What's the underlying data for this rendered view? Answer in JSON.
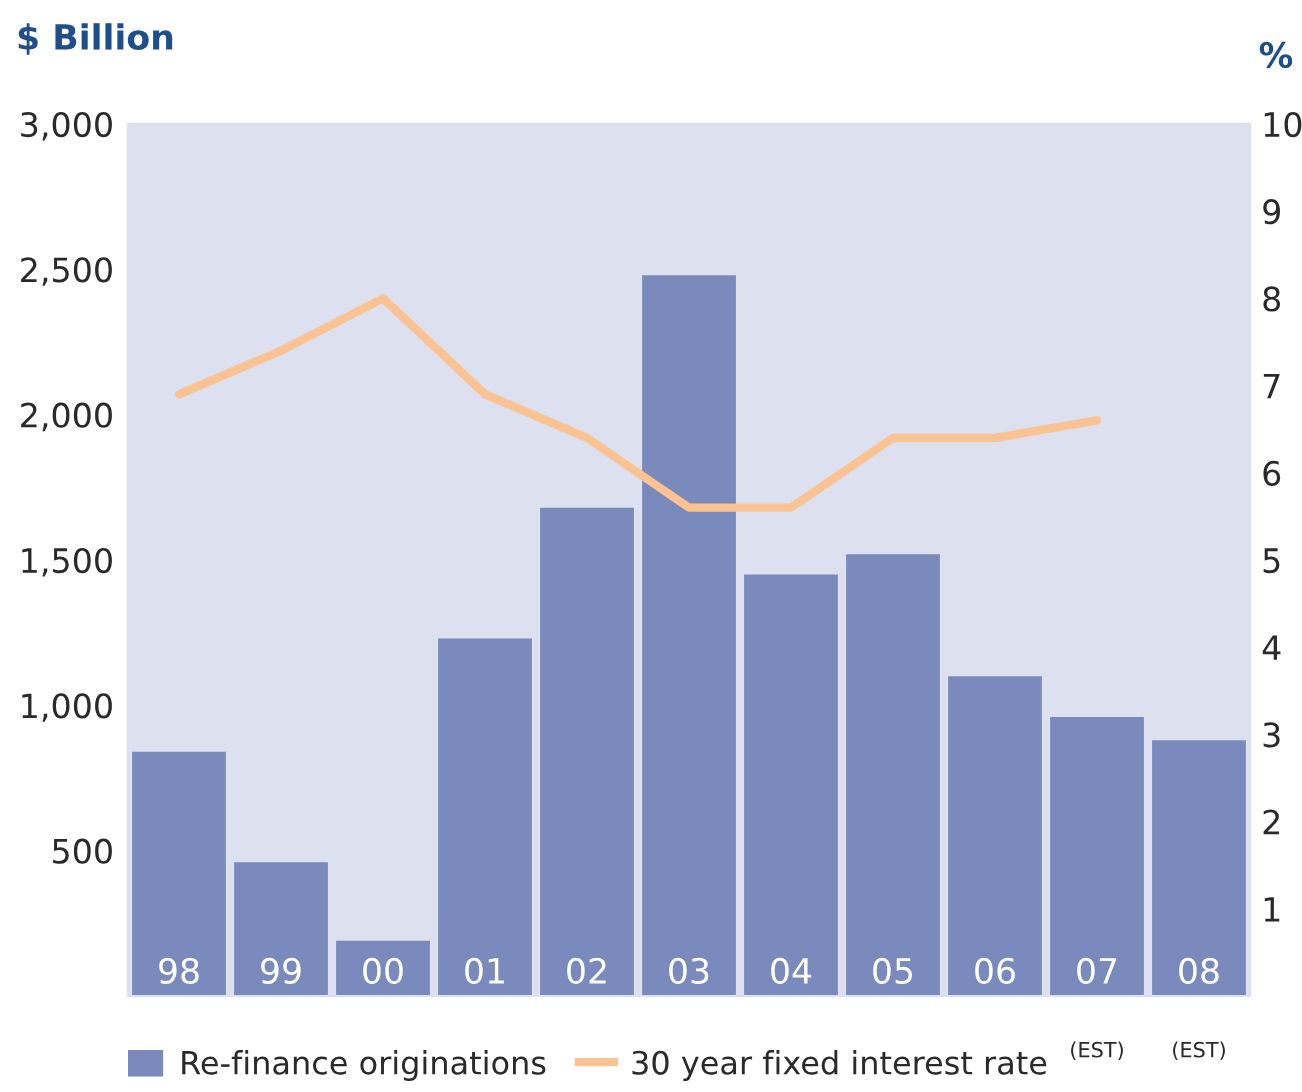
{
  "chart_data": {
    "type": "bar",
    "ylabel": "$ Billion",
    "y2label": "%",
    "categories": [
      "98",
      "99",
      "00",
      "01",
      "02",
      "03",
      "04",
      "05",
      "06",
      "07",
      "08"
    ],
    "series": [
      {
        "name": "Re-finance originations",
        "color": "#7a8abd",
        "values": [
          840,
          460,
          190,
          1230,
          1680,
          2480,
          1450,
          1520,
          1100,
          960,
          880
        ]
      },
      {
        "name": "30 year fixed interest rate",
        "type": "line",
        "axis": "y2",
        "color": "#fbc292",
        "values": [
          6.9,
          7.4,
          8.0,
          6.9,
          6.4,
          5.6,
          5.6,
          6.4,
          6.4,
          6.6,
          null
        ]
      }
    ],
    "ylim": [
      0,
      3000
    ],
    "yticks": [
      500,
      {
        "value": 1000,
        "label": "1,000"
      },
      {
        "value": 1500,
        "label": "1,500"
      },
      {
        "value": 2000,
        "label": "2,000"
      },
      {
        "value": 2500,
        "label": "2,500"
      },
      {
        "value": 3000,
        "label": "3,000"
      }
    ],
    "y2lim": [
      0,
      10
    ],
    "y2ticks": [
      1,
      2,
      3,
      4,
      5,
      6,
      7,
      8,
      9,
      10
    ],
    "annotations": [
      "(EST)",
      "(EST)"
    ],
    "legend": "bottom"
  }
}
